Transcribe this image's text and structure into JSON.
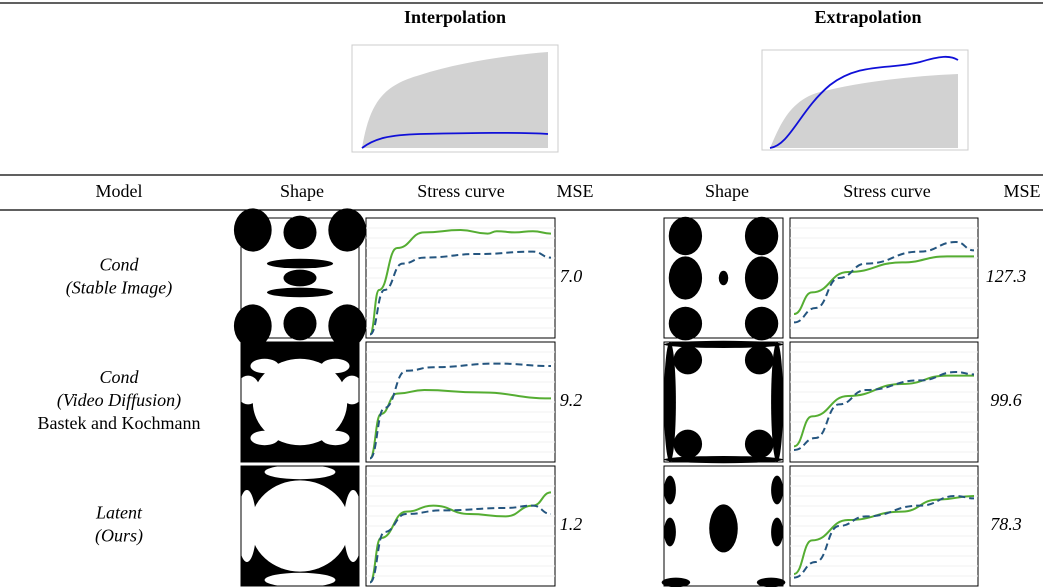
{
  "header": {
    "interpolation": "Interpolation",
    "extrapolation": "Extrapolation"
  },
  "table": {
    "columns": [
      "Model",
      "Shape",
      "Stress curve",
      "MSE",
      "Shape",
      "Stress curve",
      "MSE"
    ],
    "rows": [
      {
        "model": [
          "Cond",
          "(Stable Image)"
        ],
        "mse_interpolation": "7.0",
        "mse_extrapolation": "127.3"
      },
      {
        "model": [
          "Cond",
          "(Video Diffusion)",
          "Bastek and Kochmann"
        ],
        "mse_interpolation": "9.2",
        "mse_extrapolation": "99.6"
      },
      {
        "model": [
          "Latent",
          "(Ours)"
        ],
        "mse_interpolation": "1.2",
        "mse_extrapolation": "78.3"
      }
    ]
  }
}
